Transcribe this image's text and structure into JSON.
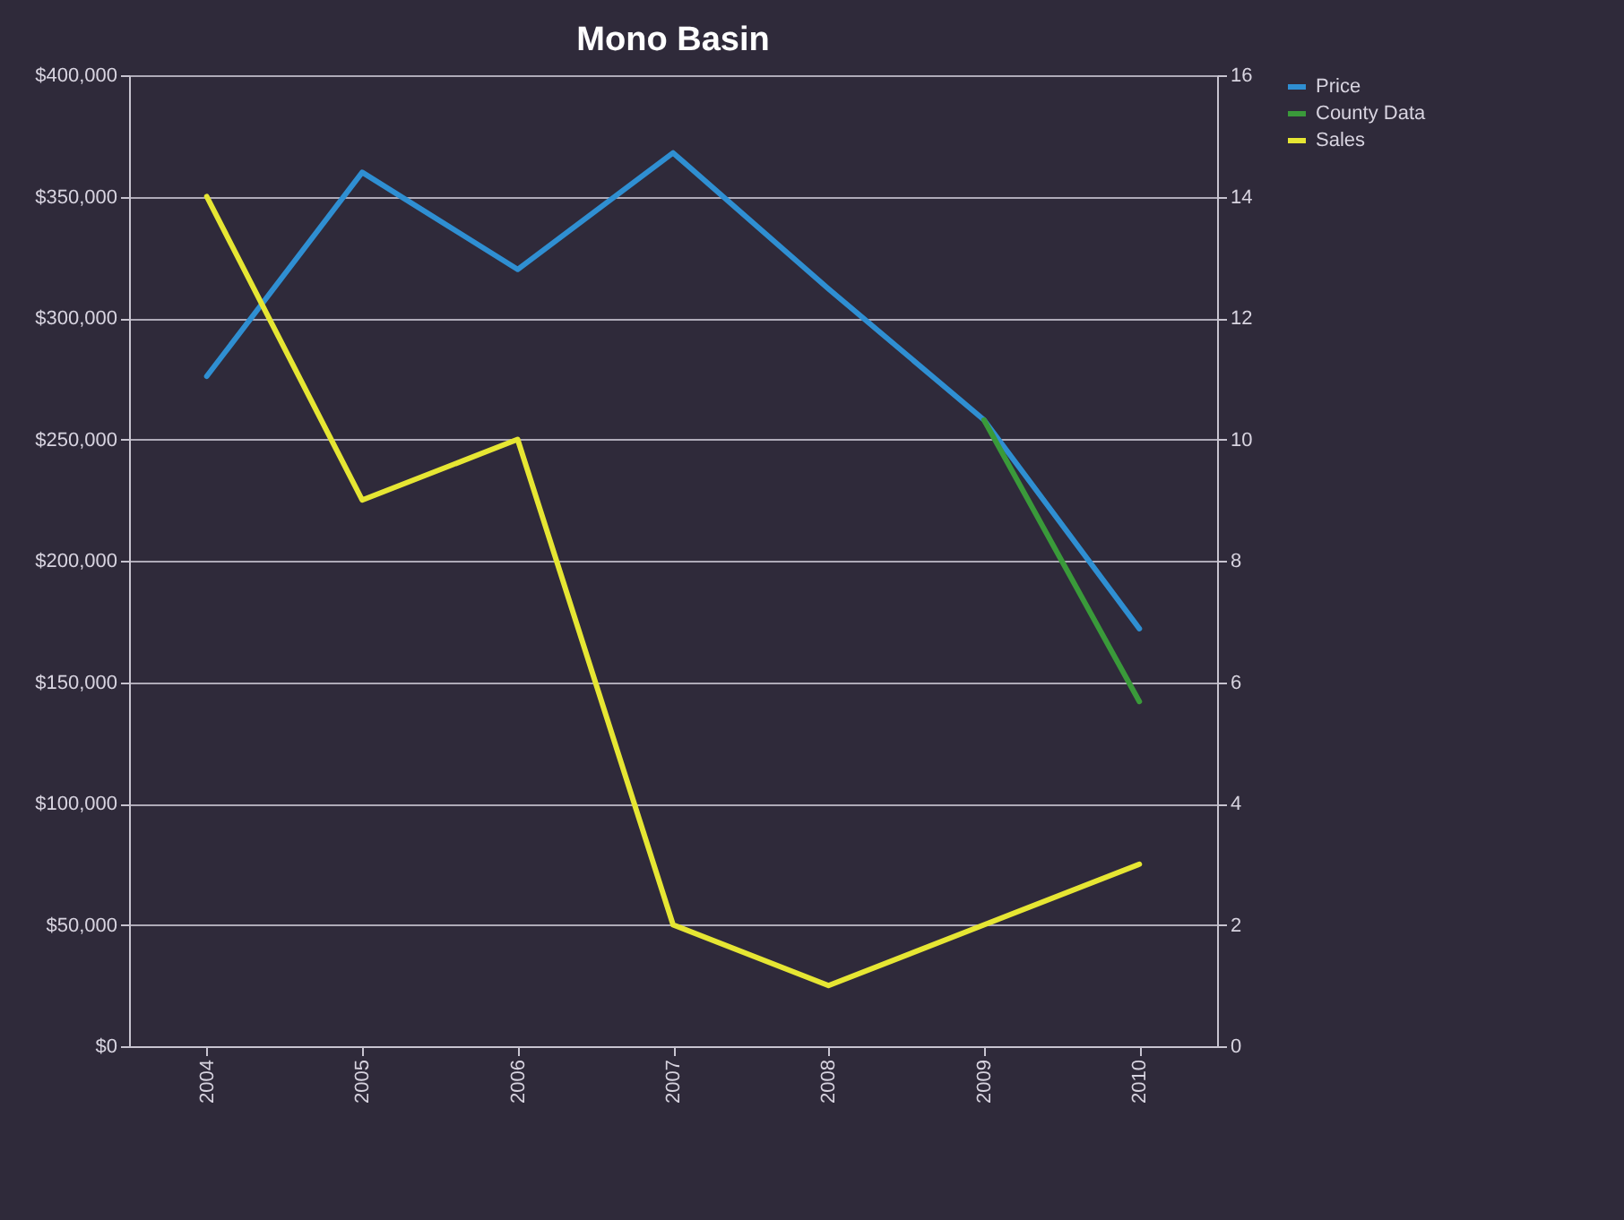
{
  "chart_data": {
    "type": "line",
    "title": "Mono Basin",
    "categories": [
      "2004",
      "2005",
      "2006",
      "2007",
      "2008",
      "2009",
      "2010"
    ],
    "series": [
      {
        "name": "Price",
        "color": "#2f8fd2",
        "values": [
          276000,
          360000,
          320000,
          368000,
          312000,
          258000,
          172000
        ]
      },
      {
        "name": "County Data",
        "color": "#3a9a3a",
        "values": [
          null,
          null,
          null,
          null,
          null,
          258000,
          142000
        ]
      },
      {
        "name": "Sales",
        "color": "#e6e633",
        "axis": "y2",
        "values": [
          14,
          9,
          10,
          2,
          1,
          2,
          3
        ]
      }
    ],
    "ylim": [
      0,
      400000
    ],
    "yticks": [
      {
        "value": 0,
        "label": "$0"
      },
      {
        "value": 50000,
        "label": "$50,000"
      },
      {
        "value": 100000,
        "label": "$100,000"
      },
      {
        "value": 150000,
        "label": "$150,000"
      },
      {
        "value": 200000,
        "label": "$200,000"
      },
      {
        "value": 250000,
        "label": "$250,000"
      },
      {
        "value": 300000,
        "label": "$300,000"
      },
      {
        "value": 350000,
        "label": "$350,000"
      },
      {
        "value": 400000,
        "label": "$400,000"
      }
    ],
    "y2lim": [
      0,
      16
    ],
    "y2ticks": [
      0,
      2,
      4,
      6,
      8,
      10,
      12,
      14,
      16
    ],
    "grid": "y",
    "legend": "right",
    "marker": "none",
    "line_style": "solid"
  }
}
